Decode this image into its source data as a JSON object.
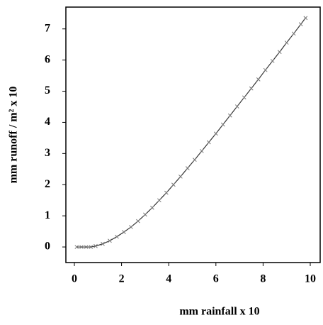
{
  "chart_data": {
    "type": "line",
    "x_label": "mm rainfall x 10",
    "y_label": "mm runoff / m² x 10",
    "x": [
      0.1,
      0.3,
      0.5,
      0.7,
      0.9,
      1.2,
      1.5,
      1.8,
      2.1,
      2.4,
      2.7,
      3.0,
      3.3,
      3.6,
      3.9,
      4.2,
      4.5,
      4.8,
      5.1,
      5.4,
      5.7,
      6.0,
      6.3,
      6.6,
      6.9,
      7.2,
      7.5,
      7.8,
      8.1,
      8.4,
      8.7,
      9.0,
      9.3,
      9.6,
      9.8
    ],
    "series": [
      {
        "name": "runoff",
        "color": "#333333",
        "values": [
          0,
          0,
          0,
          0,
          0.03,
          0.1,
          0.2,
          0.33,
          0.48,
          0.64,
          0.83,
          1.04,
          1.26,
          1.5,
          1.74,
          2.0,
          2.26,
          2.53,
          2.8,
          3.08,
          3.36,
          3.64,
          3.93,
          4.22,
          4.51,
          4.8,
          5.09,
          5.38,
          5.68,
          5.97,
          6.26,
          6.56,
          6.85,
          7.15,
          7.35
        ]
      }
    ],
    "xlim": [
      -0.36,
      10.42
    ],
    "ylim": [
      -0.5,
      7.7
    ],
    "xticks": [
      0,
      2,
      4,
      6,
      8,
      10
    ],
    "yticks": [
      0,
      1,
      2,
      3,
      4,
      5,
      6,
      7
    ]
  }
}
